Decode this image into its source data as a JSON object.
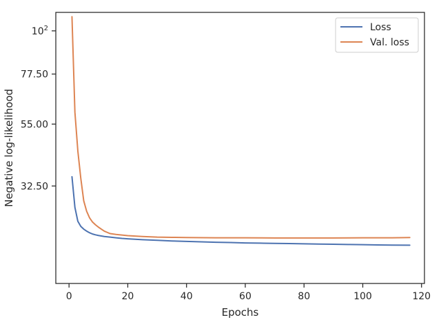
{
  "chart_data": {
    "type": "line",
    "title": "",
    "xlabel": "Epochs",
    "ylabel": "Negative log-likelihood",
    "xlim": [
      -4.5,
      121
    ],
    "ylim": [
      9.0,
      110.5
    ],
    "yscale": "sqrt",
    "grid": false,
    "legend_position": "top-right",
    "x_ticks": [
      {
        "value": 0,
        "label": "0"
      },
      {
        "value": 20,
        "label": "20"
      },
      {
        "value": 40,
        "label": "40"
      },
      {
        "value": 60,
        "label": "60"
      },
      {
        "value": 80,
        "label": "80"
      },
      {
        "value": 100,
        "label": "100"
      },
      {
        "value": 120,
        "label": "120"
      }
    ],
    "y_ticks": [
      {
        "value": 32.5,
        "label": "32.50",
        "sup": ""
      },
      {
        "value": 55,
        "label": "55.00",
        "sup": ""
      },
      {
        "value": 77.5,
        "label": "77.50",
        "sup": ""
      },
      {
        "value": 100,
        "label": "10",
        "sup": "2"
      }
    ],
    "series": [
      {
        "name": "Loss",
        "color": "#4c72b0",
        "x": [
          1,
          2,
          3,
          4,
          5,
          6,
          7,
          8,
          9,
          10,
          12,
          14,
          16,
          18,
          20,
          25,
          30,
          35,
          40,
          45,
          50,
          55,
          60,
          65,
          70,
          75,
          80,
          85,
          90,
          95,
          100,
          105,
          110,
          116
        ],
        "y": [
          35.5,
          26.1,
          22.3,
          21.0,
          20.3,
          19.8,
          19.4,
          19.1,
          18.9,
          18.75,
          18.5,
          18.35,
          18.2,
          18.05,
          17.95,
          17.75,
          17.6,
          17.45,
          17.35,
          17.25,
          17.15,
          17.1,
          17.0,
          16.95,
          16.9,
          16.85,
          16.8,
          16.75,
          16.7,
          16.65,
          16.6,
          16.55,
          16.5,
          16.48
        ]
      },
      {
        "name": "Val. loss",
        "color": "#dd8452",
        "x": [
          1,
          2,
          3,
          4,
          5,
          6,
          7,
          8,
          9,
          10,
          11,
          12,
          13,
          14,
          16,
          18,
          20,
          25,
          30,
          35,
          40,
          50,
          60,
          70,
          80,
          90,
          100,
          110,
          116
        ],
        "y": [
          108,
          60,
          44.5,
          35.0,
          28.0,
          25.0,
          23.2,
          22.1,
          21.4,
          20.8,
          20.3,
          19.8,
          19.5,
          19.2,
          19.0,
          18.85,
          18.7,
          18.5,
          18.35,
          18.3,
          18.25,
          18.2,
          18.2,
          18.15,
          18.15,
          18.15,
          18.2,
          18.2,
          18.25
        ]
      }
    ]
  }
}
